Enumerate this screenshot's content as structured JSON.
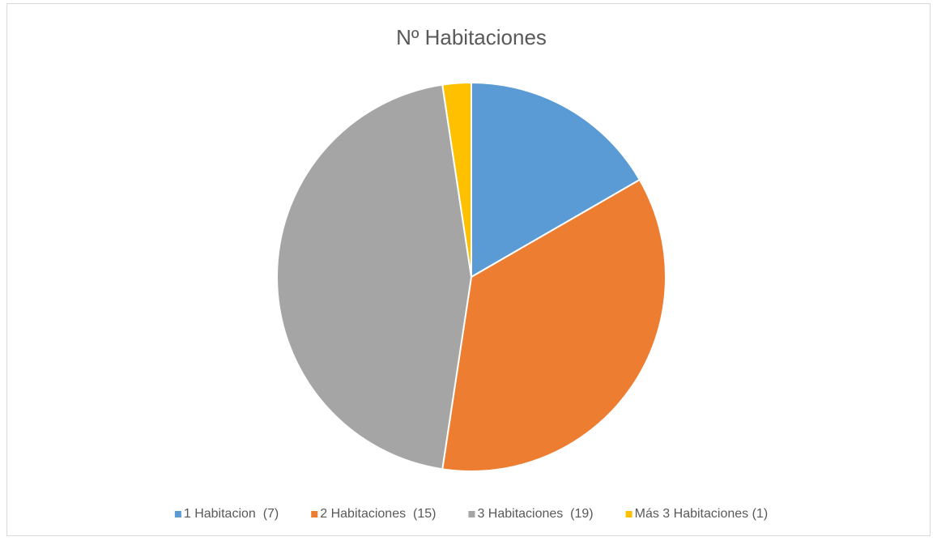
{
  "chart_data": {
    "type": "pie",
    "title": "Nº Habitaciones",
    "categories": [
      "1 Habitacion  (7)",
      "2 Habitaciones  (15)",
      "3 Habitaciones  (19)",
      "Más 3 Habitaciones (1)"
    ],
    "values": [
      7,
      15,
      19,
      1
    ],
    "colors": [
      "#5b9bd5",
      "#ed7d31",
      "#a5a5a5",
      "#ffc000"
    ],
    "legend": "bottom"
  }
}
